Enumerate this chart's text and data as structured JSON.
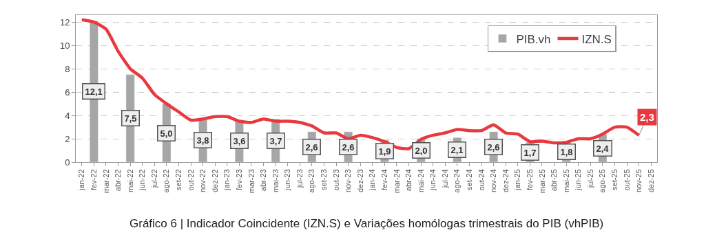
{
  "chart_data": {
    "type": "bar",
    "categories": [
      "jan-22",
      "fev-22",
      "mar-22",
      "abr-22",
      "mai-22",
      "jun-22",
      "jul-22",
      "ago-22",
      "set-22",
      "out-22",
      "nov-22",
      "dez-22",
      "jan-23",
      "fev-23",
      "mar-23",
      "abr-23",
      "mai-23",
      "jun-23",
      "jul-23",
      "ago-23",
      "set-23",
      "out-23",
      "nov-23",
      "dez-23",
      "jan-24",
      "fev-24",
      "mar-24",
      "abr-24",
      "mai-24",
      "jun-24",
      "jul-24",
      "ago-24",
      "set-24",
      "out-24",
      "nov-24",
      "dez-24",
      "jan-25",
      "fev-25",
      "mar-25",
      "abr-25",
      "mai-25",
      "jun-25",
      "jul-25",
      "ago-25",
      "set-25",
      "out-25",
      "nov-25",
      "dez-25"
    ],
    "series": [
      {
        "name": "PIB.vh",
        "color": "#a6a6a6",
        "values": [
          null,
          12.1,
          null,
          null,
          7.5,
          null,
          null,
          5.0,
          null,
          null,
          3.8,
          null,
          null,
          3.6,
          null,
          null,
          3.7,
          null,
          null,
          2.6,
          null,
          null,
          2.6,
          null,
          null,
          1.9,
          null,
          null,
          2.0,
          null,
          null,
          2.1,
          null,
          null,
          2.6,
          null,
          null,
          1.7,
          null,
          null,
          1.8,
          null,
          null,
          2.4,
          null,
          null,
          null,
          null
        ],
        "value_labels": [
          null,
          "12,1",
          null,
          null,
          "7,5",
          null,
          null,
          "5,0",
          null,
          null,
          "3,8",
          null,
          null,
          "3,6",
          null,
          null,
          "3,7",
          null,
          null,
          "2,6",
          null,
          null,
          "2,6",
          null,
          null,
          "1,9",
          null,
          null,
          "2,0",
          null,
          null,
          "2,1",
          null,
          null,
          "2,6",
          null,
          null,
          "1,7",
          null,
          null,
          "1,8",
          null,
          null,
          "2,4",
          null,
          null,
          null,
          null
        ]
      },
      {
        "name": "IZN.S",
        "type": "line",
        "color": "#e8393f",
        "values": [
          12.2,
          12.0,
          11.4,
          9.5,
          8.0,
          7.2,
          5.8,
          5.0,
          4.3,
          3.6,
          3.7,
          3.9,
          3.9,
          3.5,
          3.4,
          3.7,
          3.5,
          3.5,
          3.4,
          3.1,
          2.5,
          2.5,
          2.0,
          2.3,
          2.1,
          1.75,
          1.25,
          1.15,
          1.95,
          2.3,
          2.5,
          2.8,
          2.7,
          2.7,
          3.2,
          2.5,
          2.4,
          1.75,
          1.8,
          1.65,
          1.7,
          2.0,
          2.0,
          2.4,
          3.0,
          3.0,
          2.3,
          null
        ],
        "value_labels": [
          null,
          null,
          null,
          null,
          null,
          null,
          null,
          null,
          null,
          null,
          null,
          null,
          null,
          null,
          null,
          null,
          null,
          null,
          null,
          null,
          null,
          null,
          null,
          null,
          null,
          null,
          null,
          null,
          null,
          null,
          null,
          null,
          null,
          null,
          null,
          null,
          null,
          null,
          null,
          null,
          null,
          null,
          null,
          null,
          null,
          null,
          "2,3",
          null
        ]
      }
    ],
    "ylim": [
      0,
      12.6
    ],
    "yticks": [
      0,
      2,
      4,
      6,
      8,
      10,
      12
    ],
    "grid": "y",
    "legend": "top right",
    "marker": "none",
    "line_style": "solid",
    "annotations": [
      "Gráfico 6 | Indicador Coincidente (IZN.S) e Variações homólogas trimestrais do PIB (vhPIB)"
    ]
  }
}
